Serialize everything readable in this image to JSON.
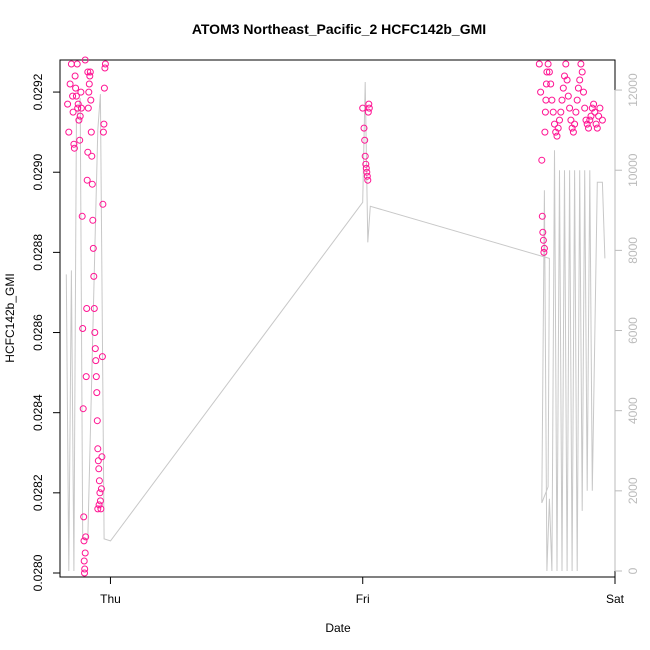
{
  "chart_data": {
    "type": "scatter",
    "title": "ATOM3 Northeast_Pacific_2 HCFC142b_GMI",
    "xlabel": "Date",
    "ylabel": "HCFC142b_GMI",
    "x_ticks": [
      "Thu",
      "Fri",
      "Sat"
    ],
    "y_ticks": [
      "0.0280",
      "0.0282",
      "0.0284",
      "0.0286",
      "0.0288",
      "0.0290",
      "0.0292"
    ],
    "y2_ticks": [
      "0",
      "2000",
      "4000",
      "6000",
      "8000",
      "10000",
      "12000"
    ],
    "xlim": [
      -0.2,
      2.0
    ],
    "ylim": [
      0.02799,
      0.02928
    ],
    "y2lim": [
      -150,
      12750
    ],
    "grid": false,
    "colors": {
      "points": "#ff1493",
      "altitude_line": "#c8c8c8",
      "y2_axis": "#bbbbbb"
    },
    "series": [
      {
        "type": "scatter",
        "axis": "left",
        "points": [
          [
            -0.17,
            0.02917
          ],
          [
            -0.165,
            0.0291
          ],
          [
            -0.16,
            0.02922
          ],
          [
            -0.155,
            0.02927
          ],
          [
            -0.15,
            0.02919
          ],
          [
            -0.148,
            0.02915
          ],
          [
            -0.145,
            0.02907
          ],
          [
            -0.143,
            0.02906
          ],
          [
            -0.14,
            0.02924
          ],
          [
            -0.138,
            0.02921
          ],
          [
            -0.135,
            0.02919
          ],
          [
            -0.132,
            0.02927
          ],
          [
            -0.13,
            0.02916
          ],
          [
            -0.128,
            0.02917
          ],
          [
            -0.125,
            0.02913
          ],
          [
            -0.122,
            0.02908
          ],
          [
            -0.12,
            0.02914
          ],
          [
            -0.117,
            0.0292
          ],
          [
            -0.115,
            0.02916
          ],
          [
            -0.112,
            0.02889
          ],
          [
            -0.11,
            0.02861
          ],
          [
            -0.108,
            0.02841
          ],
          [
            -0.106,
            0.02814
          ],
          [
            -0.105,
            0.02808
          ],
          [
            -0.104,
            0.02803
          ],
          [
            -0.103,
            0.028
          ],
          [
            -0.102,
            0.02801
          ],
          [
            -0.1,
            0.02805
          ],
          [
            -0.098,
            0.02809
          ],
          [
            -0.096,
            0.02849
          ],
          [
            -0.094,
            0.02866
          ],
          [
            -0.092,
            0.02898
          ],
          [
            -0.09,
            0.02905
          ],
          [
            -0.088,
            0.02916
          ],
          [
            -0.086,
            0.0292
          ],
          [
            -0.084,
            0.02922
          ],
          [
            -0.082,
            0.02924
          ],
          [
            -0.08,
            0.02925
          ],
          [
            -0.078,
            0.02918
          ],
          [
            -0.076,
            0.0291
          ],
          [
            -0.074,
            0.02904
          ],
          [
            -0.072,
            0.02897
          ],
          [
            -0.07,
            0.02888
          ],
          [
            -0.068,
            0.02881
          ],
          [
            -0.066,
            0.02874
          ],
          [
            -0.064,
            0.02866
          ],
          [
            -0.062,
            0.0286
          ],
          [
            -0.06,
            0.02856
          ],
          [
            -0.058,
            0.02853
          ],
          [
            -0.056,
            0.02849
          ],
          [
            -0.054,
            0.02845
          ],
          [
            -0.052,
            0.02838
          ],
          [
            -0.05,
            0.02831
          ],
          [
            -0.048,
            0.02828
          ],
          [
            -0.046,
            0.02826
          ],
          [
            -0.044,
            0.02823
          ],
          [
            -0.042,
            0.0282
          ],
          [
            -0.04,
            0.02818
          ],
          [
            -0.038,
            0.02816
          ],
          [
            -0.036,
            0.02821
          ],
          [
            -0.034,
            0.02829
          ],
          [
            -0.032,
            0.02854
          ],
          [
            -0.03,
            0.02892
          ],
          [
            -0.028,
            0.0291
          ],
          [
            -0.026,
            0.02912
          ],
          [
            -0.024,
            0.02921
          ],
          [
            -0.022,
            0.02926
          ],
          [
            -0.02,
            0.02927
          ],
          [
            -0.1,
            0.02928
          ],
          [
            -0.09,
            0.02925
          ],
          [
            -0.05,
            0.02816
          ],
          [
            -0.045,
            0.02817
          ],
          [
            1.0,
            0.02916
          ],
          [
            1.005,
            0.02911
          ],
          [
            1.008,
            0.02908
          ],
          [
            1.01,
            0.02904
          ],
          [
            1.012,
            0.02902
          ],
          [
            1.014,
            0.02901
          ],
          [
            1.016,
            0.029
          ],
          [
            1.018,
            0.02899
          ],
          [
            1.02,
            0.02898
          ],
          [
            1.022,
            0.02915
          ],
          [
            1.024,
            0.02917
          ],
          [
            1.026,
            0.02916
          ],
          [
            1.7,
            0.02927
          ],
          [
            1.705,
            0.0292
          ],
          [
            1.71,
            0.02903
          ],
          [
            1.712,
            0.02889
          ],
          [
            1.714,
            0.02885
          ],
          [
            1.716,
            0.02883
          ],
          [
            1.718,
            0.0288
          ],
          [
            1.72,
            0.02881
          ],
          [
            1.722,
            0.0291
          ],
          [
            1.724,
            0.02915
          ],
          [
            1.726,
            0.02918
          ],
          [
            1.728,
            0.02922
          ],
          [
            1.73,
            0.02925
          ],
          [
            1.735,
            0.02927
          ],
          [
            1.74,
            0.02925
          ],
          [
            1.745,
            0.02922
          ],
          [
            1.75,
            0.02918
          ],
          [
            1.755,
            0.02915
          ],
          [
            1.76,
            0.02912
          ],
          [
            1.765,
            0.0291
          ],
          [
            1.77,
            0.02909
          ],
          [
            1.775,
            0.02911
          ],
          [
            1.78,
            0.02913
          ],
          [
            1.785,
            0.02915
          ],
          [
            1.79,
            0.02918
          ],
          [
            1.795,
            0.02921
          ],
          [
            1.8,
            0.02924
          ],
          [
            1.805,
            0.02927
          ],
          [
            1.81,
            0.02923
          ],
          [
            1.815,
            0.02919
          ],
          [
            1.82,
            0.02916
          ],
          [
            1.825,
            0.02913
          ],
          [
            1.83,
            0.02911
          ],
          [
            1.835,
            0.0291
          ],
          [
            1.84,
            0.02912
          ],
          [
            1.845,
            0.02915
          ],
          [
            1.85,
            0.02918
          ],
          [
            1.855,
            0.02921
          ],
          [
            1.86,
            0.02923
          ],
          [
            1.865,
            0.02927
          ],
          [
            1.87,
            0.02925
          ],
          [
            1.875,
            0.0292
          ],
          [
            1.88,
            0.02916
          ],
          [
            1.885,
            0.02913
          ],
          [
            1.89,
            0.02912
          ],
          [
            1.895,
            0.02911
          ],
          [
            1.9,
            0.02913
          ],
          [
            1.905,
            0.02914
          ],
          [
            1.91,
            0.02916
          ],
          [
            1.915,
            0.02917
          ],
          [
            1.92,
            0.02915
          ],
          [
            1.925,
            0.02912
          ],
          [
            1.93,
            0.02911
          ],
          [
            1.935,
            0.02914
          ],
          [
            1.94,
            0.02916
          ],
          [
            1.95,
            0.02913
          ]
        ]
      },
      {
        "type": "line",
        "axis": "right",
        "points": [
          [
            -0.175,
            7400
          ],
          [
            -0.165,
            0
          ],
          [
            -0.155,
            7500
          ],
          [
            -0.145,
            0
          ],
          [
            -0.135,
            11200
          ],
          [
            -0.12,
            11800
          ],
          [
            -0.11,
            800
          ],
          [
            -0.09,
            800
          ],
          [
            -0.06,
            8500
          ],
          [
            -0.05,
            11000
          ],
          [
            -0.04,
            11900
          ],
          [
            -0.025,
            800
          ],
          [
            0.0,
            750
          ],
          [
            1.0,
            9200
          ],
          [
            1.01,
            12200
          ],
          [
            1.02,
            8200
          ],
          [
            1.03,
            9100
          ],
          [
            1.74,
            7800
          ],
          [
            1.735,
            2100
          ],
          [
            1.71,
            1700
          ],
          [
            1.72,
            9500
          ],
          [
            1.73,
            0
          ],
          [
            1.74,
            1800
          ],
          [
            1.75,
            0
          ],
          [
            1.76,
            10500
          ],
          [
            1.77,
            0
          ],
          [
            1.78,
            10000
          ],
          [
            1.79,
            0
          ],
          [
            1.8,
            10000
          ],
          [
            1.81,
            0
          ],
          [
            1.82,
            10000
          ],
          [
            1.83,
            0
          ],
          [
            1.84,
            10000
          ],
          [
            1.85,
            0
          ],
          [
            1.86,
            10000
          ],
          [
            1.87,
            1500
          ],
          [
            1.88,
            10000
          ],
          [
            1.89,
            2000
          ],
          [
            1.9,
            10000
          ],
          [
            1.91,
            2000
          ],
          [
            1.93,
            9700
          ],
          [
            1.95,
            9700
          ],
          [
            1.96,
            7800
          ]
        ]
      }
    ]
  }
}
